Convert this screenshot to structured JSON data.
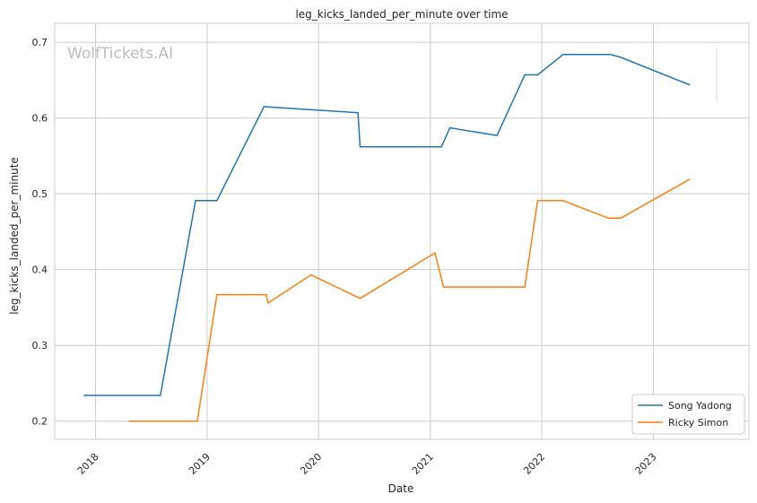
{
  "chart_data": {
    "type": "line",
    "title": "leg_kicks_landed_per_minute over time",
    "xlabel": "Date",
    "ylabel": "leg_kicks_landed_per_minute",
    "watermark": "WolfTickets.AI",
    "x_ticks": [
      "2018",
      "2019",
      "2020",
      "2021",
      "2022",
      "2023"
    ],
    "y_ticks": [
      "0.2",
      "0.3",
      "0.4",
      "0.5",
      "0.6",
      "0.7"
    ],
    "ylim": [
      0.176,
      0.725
    ],
    "xlim": [
      "2017-08-20",
      "2023-11-10"
    ],
    "grid": true,
    "legend_position": "lower right",
    "series": [
      {
        "name": "Song Yadong",
        "color": "#1f77b4",
        "points": [
          [
            "2017-11-25",
            0.234
          ],
          [
            "2018-08-01",
            0.234
          ],
          [
            "2018-11-24",
            0.491
          ],
          [
            "2019-02-02",
            0.491
          ],
          [
            "2019-07-06",
            0.615
          ],
          [
            "2020-05-09",
            0.607
          ],
          [
            "2020-05-16",
            0.562
          ],
          [
            "2021-02-06",
            0.562
          ],
          [
            "2021-03-06",
            0.587
          ],
          [
            "2021-08-07",
            0.577
          ],
          [
            "2021-11-06",
            0.657
          ],
          [
            "2021-12-18",
            0.657
          ],
          [
            "2022-03-12",
            0.684
          ],
          [
            "2022-08-13",
            0.684
          ],
          [
            "2022-09-17",
            0.68
          ],
          [
            "2023-04-29",
            0.644
          ]
        ]
      },
      {
        "name": "Ricky Simon",
        "color": "#ff7f0e",
        "points": [
          [
            "2018-04-21",
            0.2
          ],
          [
            "2018-11-30",
            0.2
          ],
          [
            "2019-02-02",
            0.367
          ],
          [
            "2019-07-13",
            0.367
          ],
          [
            "2019-07-20",
            0.356
          ],
          [
            "2019-12-07",
            0.393
          ],
          [
            "2020-05-16",
            0.362
          ],
          [
            "2021-01-16",
            0.422
          ],
          [
            "2021-02-13",
            0.377
          ],
          [
            "2021-11-06",
            0.377
          ],
          [
            "2021-12-18",
            0.491
          ],
          [
            "2022-03-12",
            0.491
          ],
          [
            "2022-08-06",
            0.468
          ],
          [
            "2022-09-17",
            0.468
          ],
          [
            "2023-04-29",
            0.519
          ]
        ]
      }
    ]
  }
}
